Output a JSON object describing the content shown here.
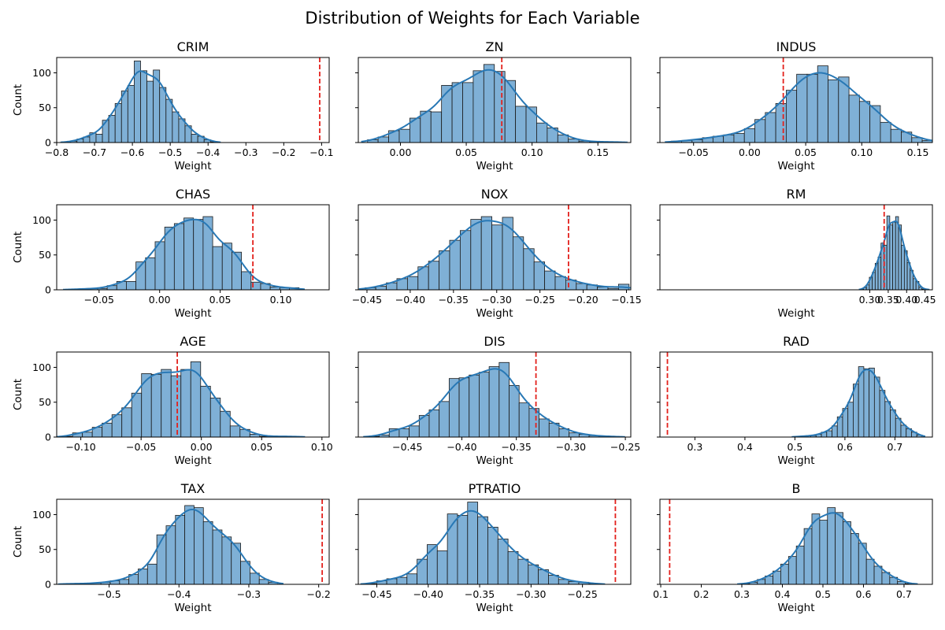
{
  "figure_title": "Distribution of Weights for Each Variable",
  "colors": {
    "bar_fill": "#7fb0d6",
    "bar_edge": "#1a1a1a",
    "kde_line": "#2878b5",
    "ref_line": "#e3211c"
  },
  "chart_data": [
    {
      "type": "bar",
      "title": "CRIM",
      "xlabel": "Weight",
      "ylabel": "Count",
      "xlim": [
        -0.8,
        -0.08
      ],
      "ylim": [
        0,
        122
      ],
      "xticks": [
        -0.8,
        -0.7,
        -0.6,
        -0.5,
        -0.4,
        -0.3,
        -0.2,
        -0.1
      ],
      "yticks": [
        0,
        50,
        100
      ],
      "bin_start": -0.78,
      "bin_width": 0.0168,
      "counts": [
        1,
        2,
        5,
        8,
        14,
        12,
        32,
        39,
        56,
        74,
        82,
        117,
        103,
        88,
        104,
        79,
        62,
        44,
        34,
        24,
        12,
        9,
        4,
        1
      ],
      "ref_line": -0.105
    },
    {
      "type": "bar",
      "title": "ZN",
      "xlabel": "Weight",
      "ylabel": "Count",
      "xlim": [
        -0.032,
        0.175
      ],
      "ylim": [
        0,
        122
      ],
      "xticks": [
        0.0,
        0.05,
        0.1,
        0.15
      ],
      "yticks": [
        0,
        50,
        100
      ],
      "bin_start": -0.025,
      "bin_width": 0.00803,
      "counts": [
        4,
        8,
        17,
        19,
        35,
        45,
        44,
        82,
        86,
        86,
        103,
        112,
        102,
        89,
        52,
        51,
        28,
        21,
        11,
        5,
        2,
        1,
        1,
        1
      ],
      "ref_line": 0.077
    },
    {
      "type": "bar",
      "title": "INDUS",
      "xlabel": "Weight",
      "ylabel": "Count",
      "xlim": [
        -0.08,
        0.163
      ],
      "ylim": [
        0,
        122
      ],
      "xticks": [
        -0.05,
        0.0,
        0.05,
        0.1,
        0.15
      ],
      "yticks": [
        0,
        50,
        100
      ],
      "bin_start": -0.07,
      "bin_width": 0.00933,
      "counts": [
        2,
        3,
        4,
        7,
        9,
        11,
        13,
        20,
        33,
        43,
        56,
        75,
        98,
        98,
        110,
        90,
        94,
        68,
        59,
        53,
        29,
        19,
        15,
        7,
        3,
        1
      ],
      "ref_line": 0.03
    },
    {
      "type": "bar",
      "title": "CHAS",
      "xlabel": "Weight",
      "ylabel": "Count",
      "xlim": [
        -0.085,
        0.14
      ],
      "ylim": [
        0,
        122
      ],
      "xticks": [
        -0.05,
        0.0,
        0.05,
        0.1
      ],
      "yticks": [
        0,
        50,
        100
      ],
      "bin_start": -0.075,
      "bin_width": 0.00792,
      "counts": [
        1,
        1,
        2,
        2,
        6,
        12,
        12,
        40,
        46,
        69,
        90,
        95,
        103,
        101,
        105,
        62,
        67,
        54,
        26,
        11,
        9,
        4,
        3,
        3
      ],
      "ref_line": 0.077
    },
    {
      "type": "bar",
      "title": "NOX",
      "xlabel": "Weight",
      "ylabel": "Count",
      "xlim": [
        -0.46,
        -0.145
      ],
      "ylim": [
        0,
        122
      ],
      "xticks": [
        -0.45,
        -0.4,
        -0.35,
        -0.3,
        -0.25,
        -0.2,
        -0.15
      ],
      "yticks": [
        0,
        50,
        100
      ],
      "bin_start": -0.452,
      "bin_width": 0.0122,
      "counts": [
        3,
        5,
        10,
        16,
        19,
        33,
        41,
        56,
        71,
        85,
        101,
        105,
        93,
        104,
        76,
        59,
        40,
        27,
        19,
        14,
        9,
        7,
        4,
        2,
        8
      ],
      "ref_line": -0.217
    },
    {
      "type": "bar",
      "title": "RM",
      "xlabel": "Weight",
      "ylabel": "Count",
      "xlim": [
        -0.27,
        0.47
      ],
      "ylim": [
        0,
        122
      ],
      "xticks": [
        0.3,
        0.35,
        0.4,
        0.45
      ],
      "yticks": [
        0,
        50,
        100
      ],
      "bin_start": 0.275,
      "bin_width": 0.00792,
      "counts": [
        1,
        3,
        7,
        18,
        25,
        38,
        47,
        67,
        64,
        106,
        93,
        97,
        105,
        93,
        64,
        56,
        39,
        28,
        16,
        12,
        4,
        1,
        1
      ],
      "ref_line": 0.339
    },
    {
      "type": "bar",
      "title": "AGE",
      "xlabel": "Weight",
      "ylabel": "Count",
      "xlim": [
        -0.12,
        0.106
      ],
      "ylim": [
        0,
        122
      ],
      "xticks": [
        -0.1,
        -0.05,
        0.0,
        0.05,
        0.1
      ],
      "yticks": [
        0,
        50,
        100
      ],
      "bin_start": -0.115,
      "bin_width": 0.00817,
      "counts": [
        1,
        6,
        7,
        14,
        20,
        32,
        42,
        63,
        91,
        90,
        97,
        88,
        97,
        108,
        73,
        56,
        37,
        16,
        11,
        4,
        1,
        1,
        1,
        1
      ],
      "ref_line": -0.02
    },
    {
      "type": "bar",
      "title": "DIS",
      "xlabel": "Weight",
      "ylabel": "Count",
      "xlim": [
        -0.495,
        -0.245
      ],
      "ylim": [
        0,
        122
      ],
      "xticks": [
        -0.45,
        -0.4,
        -0.35,
        -0.3,
        -0.25
      ],
      "yticks": [
        0,
        50,
        100
      ],
      "bin_start": -0.485,
      "bin_width": 0.00917,
      "counts": [
        1,
        3,
        12,
        12,
        16,
        31,
        39,
        51,
        84,
        85,
        89,
        93,
        101,
        107,
        74,
        49,
        41,
        26,
        20,
        12,
        6,
        4,
        2,
        1,
        1
      ],
      "ref_line": -0.332
    },
    {
      "type": "bar",
      "title": "RAD",
      "xlabel": "Weight",
      "ylabel": "Count",
      "xlim": [
        0.23,
        0.775
      ],
      "ylim": [
        0,
        122
      ],
      "xticks": [
        0.3,
        0.4,
        0.5,
        0.6,
        0.7
      ],
      "yticks": [
        0,
        50,
        100
      ],
      "bin_start": 0.5,
      "bin_width": 0.0106,
      "counts": [
        1,
        1,
        2,
        2,
        4,
        7,
        9,
        16,
        29,
        41,
        50,
        76,
        101,
        98,
        99,
        86,
        67,
        51,
        39,
        27,
        17,
        12,
        7,
        3
      ],
      "ref_line": 0.245
    },
    {
      "type": "bar",
      "title": "TAX",
      "xlabel": "Weight",
      "ylabel": "Count",
      "xlim": [
        -0.575,
        -0.185
      ],
      "ylim": [
        0,
        122
      ],
      "xticks": [
        -0.5,
        -0.4,
        -0.3,
        -0.2
      ],
      "yticks": [
        0,
        50,
        100
      ],
      "bin_start": -0.565,
      "bin_width": 0.01333,
      "counts": [
        1,
        1,
        1,
        2,
        3,
        5,
        7,
        14,
        22,
        29,
        71,
        84,
        99,
        113,
        110,
        90,
        78,
        68,
        59,
        33,
        16,
        7,
        3
      ],
      "ref_line": -0.195
    },
    {
      "type": "bar",
      "title": "PTRATIO",
      "xlabel": "Weight",
      "ylabel": "Count",
      "xlim": [
        -0.468,
        -0.203
      ],
      "ylim": [
        0,
        122
      ],
      "xticks": [
        -0.45,
        -0.4,
        -0.35,
        -0.3,
        -0.25
      ],
      "yticks": [
        0,
        50,
        100
      ],
      "bin_start": -0.46,
      "bin_width": 0.00983,
      "counts": [
        1,
        5,
        8,
        10,
        15,
        36,
        57,
        48,
        101,
        99,
        118,
        97,
        82,
        65,
        47,
        36,
        28,
        21,
        13,
        7,
        4,
        3,
        1
      ],
      "ref_line": -0.218
    },
    {
      "type": "bar",
      "title": "B",
      "xlabel": "Weight",
      "ylabel": "Count",
      "xlim": [
        0.098,
        0.77
      ],
      "ylim": [
        0,
        122
      ],
      "xticks": [
        0.1,
        0.2,
        0.3,
        0.4,
        0.5,
        0.6,
        0.7
      ],
      "yticks": [
        0,
        50,
        100
      ],
      "bin_start": 0.3,
      "bin_width": 0.0192,
      "counts": [
        1,
        3,
        7,
        12,
        19,
        29,
        40,
        55,
        80,
        101,
        92,
        110,
        103,
        90,
        73,
        59,
        36,
        26,
        17,
        10,
        4,
        1
      ],
      "ref_line": 0.122
    }
  ]
}
